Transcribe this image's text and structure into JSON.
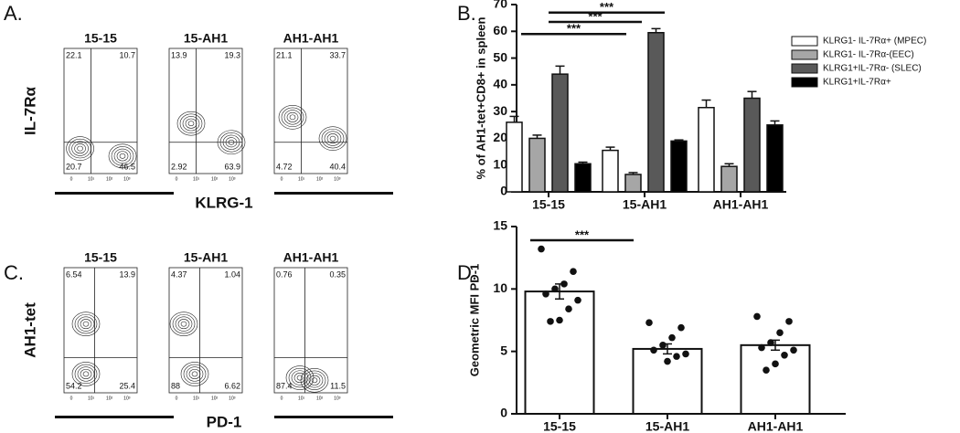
{
  "figure_labels": [
    "A.",
    "B.",
    "C.",
    "D."
  ],
  "flow": [
    {
      "y_label": "IL-7Rα",
      "x_label": "KLRG-1",
      "plots": [
        {
          "title": "15-15",
          "quadrants": [
            22.1,
            10.7,
            20.7,
            46.5
          ]
        },
        {
          "title": "15-AH1",
          "quadrants": [
            13.9,
            19.3,
            2.92,
            63.9
          ]
        },
        {
          "title": "AH1-AH1",
          "quadrants": [
            21.1,
            33.7,
            4.72,
            40.4
          ]
        }
      ]
    },
    {
      "y_label": "AH1-tet",
      "x_label": "PD-1",
      "plots": [
        {
          "title": "15-15",
          "quadrants": [
            6.54,
            13.9,
            54.2,
            25.4
          ]
        },
        {
          "title": "15-AH1",
          "quadrants": [
            4.37,
            1.04,
            88,
            6.62
          ]
        },
        {
          "title": "AH1-AH1",
          "quadrants": [
            0.76,
            0.35,
            87.4,
            11.5
          ]
        }
      ]
    }
  ],
  "flow_ticks": [
    "0",
    "10¹",
    "10²",
    "10³"
  ],
  "chart_data": [
    {
      "type": "grouped-bar",
      "y_label": "% of AH1-tet+CD8+ in spleen",
      "categories": [
        "15-15",
        "15-AH1",
        "AH1-AH1"
      ],
      "series": [
        {
          "name": "KLRG1- IL-7Rα+ (MPEC)",
          "color": "#ffffff",
          "values": [
            26,
            15.5,
            31.5
          ],
          "errors": [
            2.2,
            1.2,
            2.8
          ]
        },
        {
          "name": "KLRG1- IL-7Rα-(EEC)",
          "color": "#a6a6a6",
          "values": [
            20,
            6.5,
            9.5
          ],
          "errors": [
            1.2,
            0.7,
            1
          ]
        },
        {
          "name": "KLRG1+IL-7Rα- (SLEC)",
          "color": "#595959",
          "values": [
            44,
            59.5,
            35
          ],
          "errors": [
            3,
            1.5,
            2.5
          ]
        },
        {
          "name": "KLRG1+IL-7Rα+",
          "color": "#000000",
          "values": [
            10.5,
            19,
            25
          ],
          "errors": [
            0.6,
            0.4,
            1.5
          ]
        }
      ],
      "ylim": [
        0,
        70
      ],
      "yticks": [
        0,
        10,
        20,
        30,
        40,
        50,
        60,
        70
      ],
      "annotations": [
        {
          "text": "***",
          "y": 67
        },
        {
          "text": "***",
          "y": 63.5
        },
        {
          "text": "***",
          "y": 59
        }
      ]
    },
    {
      "type": "bar-scatter",
      "y_label": "Geometric MFI PD-1",
      "categories": [
        "15-15",
        "15-AH1",
        "AH1-AH1"
      ],
      "values": [
        9.8,
        5.2,
        5.5
      ],
      "errors": [
        0.6,
        0.4,
        0.4
      ],
      "color": "#ffffff",
      "points": [
        [
          13.2,
          11.4,
          10.4,
          10.0,
          9.6,
          9.1,
          8.4,
          7.5,
          7.4
        ],
        [
          7.3,
          6.9,
          6.1,
          5.5,
          5.1,
          4.8,
          4.6,
          4.2
        ],
        [
          7.8,
          7.4,
          6.5,
          5.7,
          5.3,
          5.1,
          4.7,
          4.0,
          3.5
        ]
      ],
      "ylim": [
        0,
        15
      ],
      "yticks": [
        0,
        5,
        10,
        15
      ],
      "annotations": [
        {
          "text": "***",
          "y": 13.9
        }
      ]
    }
  ]
}
